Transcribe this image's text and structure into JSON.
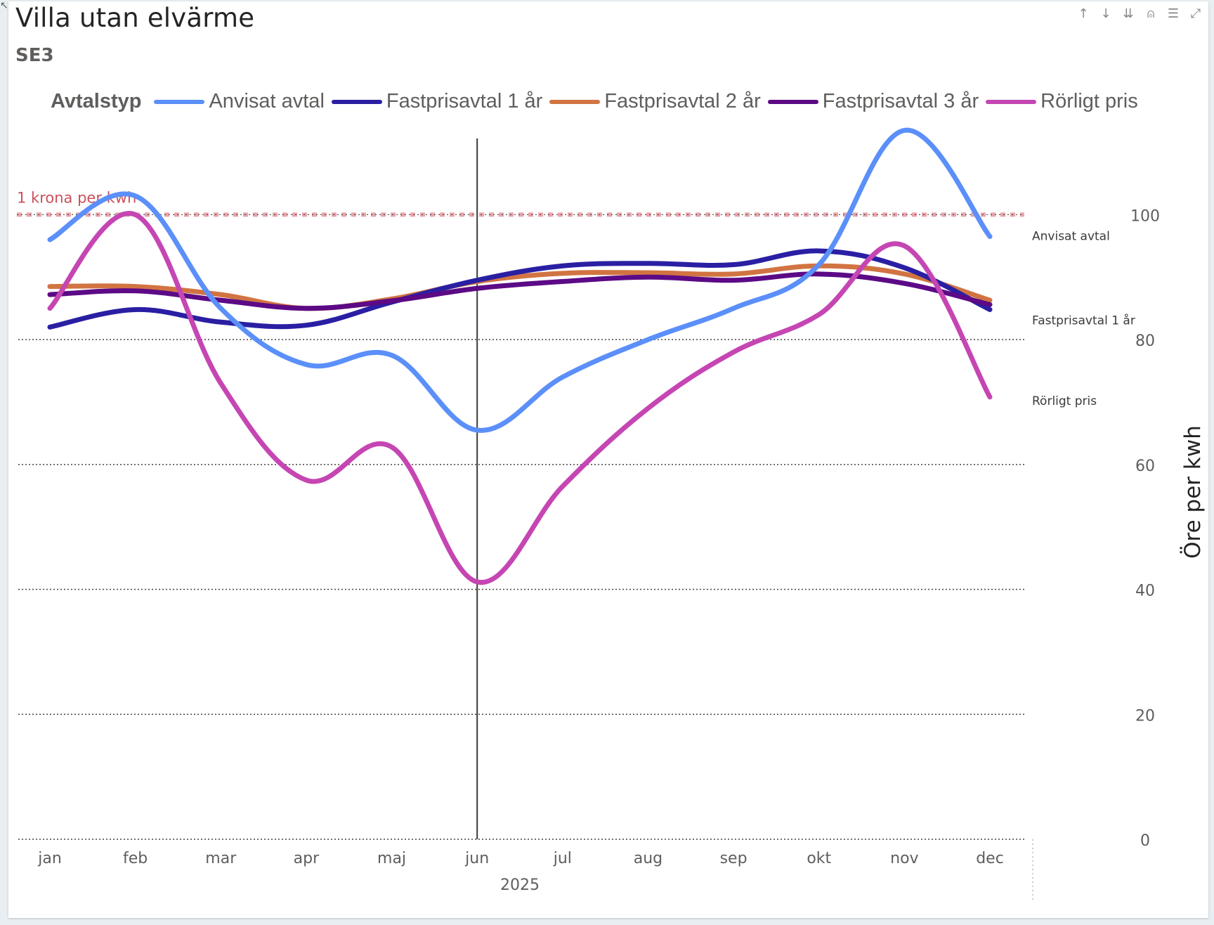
{
  "header": {
    "title": "Villa utan elvärme",
    "subtitle": "SE3"
  },
  "toolbar": {
    "icons": [
      "sort-ascending-icon",
      "sort-descending-icon",
      "expand-all-down-icon",
      "drill-up-icon",
      "filter-icon",
      "focus-mode-icon"
    ]
  },
  "colors": {
    "Anvisat avtal": "#5b8ff9",
    "Fastprisavtal 1 år": "#2a1fa3",
    "Fastprisavtal 2 år": "#d17442",
    "Fastprisavtal 3 år": "#5c0a86",
    "Rörligt pris": "#c546b3",
    "reference": "#c9515c"
  },
  "chart_data": {
    "type": "line",
    "legend_title": "Avtalstyp",
    "categories": [
      "jan",
      "feb",
      "mar",
      "apr",
      "maj",
      "jun",
      "jul",
      "aug",
      "sep",
      "okt",
      "nov",
      "dec"
    ],
    "x_group_label": "2025",
    "ylabel": "Öre per kwh",
    "ylim": [
      0,
      114
    ],
    "yticks": [
      0,
      20,
      40,
      60,
      80,
      100
    ],
    "reference_line": {
      "value": 100,
      "label": "1 krona per kwh"
    },
    "cursor_category": "jun",
    "series": [
      {
        "name": "Anvisat avtal",
        "values": [
          96,
          103,
          85,
          76,
          77.5,
          65.5,
          74,
          80,
          85,
          92,
          113.5,
          96.5
        ]
      },
      {
        "name": "Fastprisavtal 1 år",
        "values": [
          82,
          84.8,
          82.8,
          82.3,
          86,
          89.5,
          91.8,
          92.2,
          92,
          94.2,
          91.5,
          84.8
        ]
      },
      {
        "name": "Fastprisavtal 2 år",
        "values": [
          88.5,
          88.5,
          87.2,
          85,
          86.5,
          89.3,
          90.6,
          90.7,
          90.5,
          91.8,
          90.5,
          86.3
        ]
      },
      {
        "name": "Fastprisavtal 3 år",
        "values": [
          87.2,
          87.8,
          86.3,
          85,
          86.2,
          88.2,
          89.3,
          90,
          89.5,
          90.5,
          89,
          85.6
        ]
      },
      {
        "name": "Rörligt pris",
        "values": [
          85,
          100,
          73,
          57.5,
          62.8,
          41.2,
          56.5,
          69,
          78,
          84,
          95,
          70.8
        ]
      }
    ],
    "end_labels": [
      {
        "series": "Anvisat avtal",
        "text": "Anvisat avtal"
      },
      {
        "series": "Fastprisavtal 1 år",
        "text": "Fastprisavtal 1 år"
      },
      {
        "series": "Rörligt pris",
        "text": "Rörligt pris"
      }
    ]
  }
}
